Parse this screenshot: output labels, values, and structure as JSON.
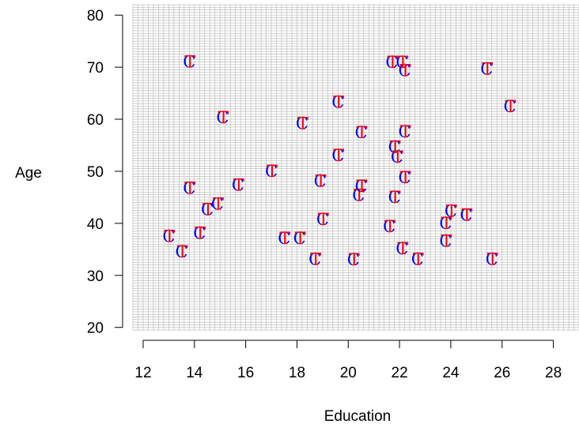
{
  "chart_data": {
    "type": "scatter",
    "xlabel": "Education",
    "ylabel": "Age",
    "xlim": [
      11.6,
      29
    ],
    "ylim": [
      19.5,
      82
    ],
    "xticks": [
      12,
      14,
      16,
      18,
      20,
      22,
      24,
      26,
      28
    ],
    "yticks": [
      20,
      30,
      40,
      50,
      60,
      70,
      80
    ],
    "grid": true,
    "grid_step": {
      "x": 0.2,
      "y": 0.5
    },
    "marker_glyphs": {
      "back": "C",
      "front": "T"
    },
    "colors": {
      "c_marker": "#0000ff",
      "t_marker": "#ff0000",
      "grid": "#bdbdbd",
      "axis": "#000000"
    },
    "points": [
      {
        "x": 13.8,
        "y": 71.0
      },
      {
        "x": 15.1,
        "y": 60.3
      },
      {
        "x": 13.8,
        "y": 46.7
      },
      {
        "x": 14.5,
        "y": 42.6
      },
      {
        "x": 14.9,
        "y": 43.7
      },
      {
        "x": 15.7,
        "y": 47.3
      },
      {
        "x": 13.0,
        "y": 37.5
      },
      {
        "x": 13.5,
        "y": 34.5
      },
      {
        "x": 14.2,
        "y": 38.1
      },
      {
        "x": 17.0,
        "y": 50.0
      },
      {
        "x": 17.5,
        "y": 37.1
      },
      {
        "x": 18.1,
        "y": 37.1
      },
      {
        "x": 18.2,
        "y": 59.2
      },
      {
        "x": 18.7,
        "y": 33.1
      },
      {
        "x": 18.9,
        "y": 48.1
      },
      {
        "x": 19.0,
        "y": 40.7
      },
      {
        "x": 19.6,
        "y": 63.3
      },
      {
        "x": 19.6,
        "y": 53.0
      },
      {
        "x": 20.2,
        "y": 33.0
      },
      {
        "x": 20.4,
        "y": 45.4
      },
      {
        "x": 20.5,
        "y": 57.4
      },
      {
        "x": 20.5,
        "y": 47.1
      },
      {
        "x": 21.6,
        "y": 39.4
      },
      {
        "x": 21.7,
        "y": 70.9
      },
      {
        "x": 21.8,
        "y": 54.6
      },
      {
        "x": 21.8,
        "y": 45.0
      },
      {
        "x": 21.9,
        "y": 52.7
      },
      {
        "x": 22.1,
        "y": 70.9
      },
      {
        "x": 22.2,
        "y": 69.3
      },
      {
        "x": 22.2,
        "y": 57.6
      },
      {
        "x": 22.2,
        "y": 48.8
      },
      {
        "x": 22.1,
        "y": 35.1
      },
      {
        "x": 22.7,
        "y": 33.1
      },
      {
        "x": 23.8,
        "y": 36.6
      },
      {
        "x": 23.8,
        "y": 40.0
      },
      {
        "x": 24.0,
        "y": 42.3
      },
      {
        "x": 24.6,
        "y": 41.6
      },
      {
        "x": 25.4,
        "y": 69.6
      },
      {
        "x": 25.6,
        "y": 33.1
      },
      {
        "x": 26.3,
        "y": 62.4
      }
    ]
  }
}
